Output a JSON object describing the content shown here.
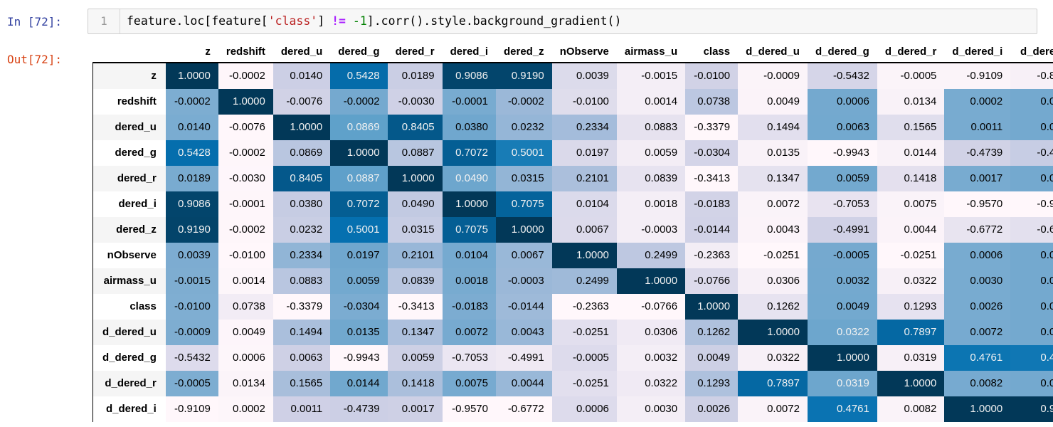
{
  "cell": {
    "in_prompt": "In [72]:",
    "out_prompt": "Out[72]:",
    "line_number": "1",
    "code_tokens": [
      {
        "text": "feature.loc[feature[",
        "type": "plain"
      },
      {
        "text": "'class'",
        "type": "string"
      },
      {
        "text": "] ",
        "type": "plain"
      },
      {
        "text": "!=",
        "type": "operator"
      },
      {
        "text": " ",
        "type": "plain"
      },
      {
        "text": "-1",
        "type": "number"
      },
      {
        "text": "].corr().style.background_gradient()",
        "type": "plain"
      }
    ]
  },
  "colors": {
    "in_prompt": "#303F9F",
    "out_prompt": "#D84315",
    "code_string": "#BA2121",
    "code_operator": "#AA22FF",
    "code_number": "#008000",
    "row_stripe": "#f5f5f5",
    "light_text": "#f1f1f1",
    "gradient_pubu_stops": [
      "#fff7fb",
      "#ece7f2",
      "#d0d1e6",
      "#a6bddb",
      "#74a9cf",
      "#3690c0",
      "#0570b0",
      "#045a8d",
      "#023858"
    ]
  },
  "table": {
    "columns": [
      "z",
      "redshift",
      "dered_u",
      "dered_g",
      "dered_r",
      "dered_i",
      "dered_z",
      "nObserve",
      "airmass_u",
      "class",
      "d_dered_u",
      "d_dered_g",
      "d_dered_r",
      "d_dered_i",
      "d_dere"
    ],
    "rows": [
      {
        "label": "z",
        "values": [
          "1.0000",
          "-0.0002",
          "0.0140",
          "0.5428",
          "0.0189",
          "0.9086",
          "0.9190",
          "0.0039",
          "-0.0015",
          "-0.0100",
          "-0.0009",
          "-0.5432",
          "-0.0005",
          "-0.9109",
          "-0.8"
        ]
      },
      {
        "label": "redshift",
        "values": [
          "-0.0002",
          "1.0000",
          "-0.0076",
          "-0.0002",
          "-0.0030",
          "-0.0001",
          "-0.0002",
          "-0.0100",
          "0.0014",
          "0.0738",
          "0.0049",
          "0.0006",
          "0.0134",
          "0.0002",
          "0.0"
        ]
      },
      {
        "label": "dered_u",
        "values": [
          "0.0140",
          "-0.0076",
          "1.0000",
          "0.0869",
          "0.8405",
          "0.0380",
          "0.0232",
          "0.2334",
          "0.0883",
          "-0.3379",
          "0.1494",
          "0.0063",
          "0.1565",
          "0.0011",
          "0.0"
        ]
      },
      {
        "label": "dered_g",
        "values": [
          "0.5428",
          "-0.0002",
          "0.0869",
          "1.0000",
          "0.0887",
          "0.7072",
          "0.5001",
          "0.0197",
          "0.0059",
          "-0.0304",
          "0.0135",
          "-0.9943",
          "0.0144",
          "-0.4739",
          "-0.4"
        ]
      },
      {
        "label": "dered_r",
        "values": [
          "0.0189",
          "-0.0030",
          "0.8405",
          "0.0887",
          "1.0000",
          "0.0490",
          "0.0315",
          "0.2101",
          "0.0839",
          "-0.3413",
          "0.1347",
          "0.0059",
          "0.1418",
          "0.0017",
          "0.0"
        ]
      },
      {
        "label": "dered_i",
        "values": [
          "0.9086",
          "-0.0001",
          "0.0380",
          "0.7072",
          "0.0490",
          "1.0000",
          "0.7075",
          "0.0104",
          "0.0018",
          "-0.0183",
          "0.0072",
          "-0.7053",
          "0.0075",
          "-0.9570",
          "-0.9"
        ]
      },
      {
        "label": "dered_z",
        "values": [
          "0.9190",
          "-0.0002",
          "0.0232",
          "0.5001",
          "0.0315",
          "0.7075",
          "1.0000",
          "0.0067",
          "-0.0003",
          "-0.0144",
          "0.0043",
          "-0.4991",
          "0.0044",
          "-0.6772",
          "-0.6"
        ]
      },
      {
        "label": "nObserve",
        "values": [
          "0.0039",
          "-0.0100",
          "0.2334",
          "0.0197",
          "0.2101",
          "0.0104",
          "0.0067",
          "1.0000",
          "0.2499",
          "-0.2363",
          "-0.0251",
          "-0.0005",
          "-0.0251",
          "0.0006",
          "0.0"
        ]
      },
      {
        "label": "airmass_u",
        "values": [
          "-0.0015",
          "0.0014",
          "0.0883",
          "0.0059",
          "0.0839",
          "0.0018",
          "-0.0003",
          "0.2499",
          "1.0000",
          "-0.0766",
          "0.0306",
          "0.0032",
          "0.0322",
          "0.0030",
          "0.0"
        ]
      },
      {
        "label": "class",
        "values": [
          "-0.0100",
          "0.0738",
          "-0.3379",
          "-0.0304",
          "-0.3413",
          "-0.0183",
          "-0.0144",
          "-0.2363",
          "-0.0766",
          "1.0000",
          "0.1262",
          "0.0049",
          "0.1293",
          "0.0026",
          "0.0"
        ]
      },
      {
        "label": "d_dered_u",
        "values": [
          "-0.0009",
          "0.0049",
          "0.1494",
          "0.0135",
          "0.1347",
          "0.0072",
          "0.0043",
          "-0.0251",
          "0.0306",
          "0.1262",
          "1.0000",
          "0.0322",
          "0.7897",
          "0.0072",
          "0.0"
        ]
      },
      {
        "label": "d_dered_g",
        "values": [
          "-0.5432",
          "0.0006",
          "0.0063",
          "-0.9943",
          "0.0059",
          "-0.7053",
          "-0.4991",
          "-0.0005",
          "0.0032",
          "0.0049",
          "0.0322",
          "1.0000",
          "0.0319",
          "0.4761",
          "0.4"
        ]
      },
      {
        "label": "d_dered_r",
        "values": [
          "-0.0005",
          "0.0134",
          "0.1565",
          "0.0144",
          "0.1418",
          "0.0075",
          "0.0044",
          "-0.0251",
          "0.0322",
          "0.1293",
          "0.7897",
          "0.0319",
          "1.0000",
          "0.0082",
          "0.0"
        ]
      },
      {
        "label": "d_dered_i",
        "values": [
          "-0.9109",
          "0.0002",
          "0.0011",
          "-0.4739",
          "0.0017",
          "-0.9570",
          "-0.6772",
          "0.0006",
          "0.0030",
          "0.0026",
          "0.0072",
          "0.4761",
          "0.0082",
          "1.0000",
          "0.9"
        ]
      }
    ]
  }
}
